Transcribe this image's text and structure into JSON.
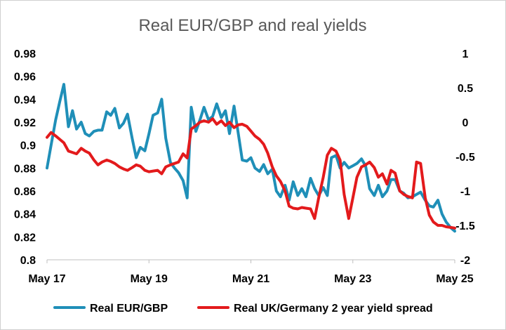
{
  "chart_data": {
    "type": "line",
    "title": "Real EUR/GBP and real yields",
    "xlabel": "",
    "ylabel": "",
    "x_ticks": [
      "May 17",
      "May 19",
      "May 21",
      "May 23",
      "May 25"
    ],
    "x_tick_positions": [
      2017.37,
      2019.37,
      2021.37,
      2023.37,
      2025.37
    ],
    "xlim": [
      2017.37,
      2025.37
    ],
    "left_axis": {
      "ylim": [
        0.8,
        0.98
      ],
      "ticks": [
        "0.8",
        "0.82",
        "0.84",
        "0.86",
        "0.88",
        "0.9",
        "0.92",
        "0.94",
        "0.96",
        "0.98"
      ]
    },
    "right_axis": {
      "ylim": [
        -2,
        1
      ],
      "ticks": [
        "1",
        "0.5",
        "0",
        "-0.5",
        "-1",
        "-1.5",
        "-2"
      ]
    },
    "grid": false,
    "legend": "bottom",
    "series": [
      {
        "name": "Real EUR/GBP",
        "axis": "left",
        "color": "#1f8fb8",
        "x": [
          2017.37,
          2017.45,
          2017.54,
          2017.62,
          2017.7,
          2017.79,
          2017.87,
          2017.95,
          2018.04,
          2018.12,
          2018.2,
          2018.29,
          2018.37,
          2018.45,
          2018.54,
          2018.62,
          2018.7,
          2018.79,
          2018.87,
          2018.95,
          2019.04,
          2019.12,
          2019.2,
          2019.29,
          2019.37,
          2019.45,
          2019.54,
          2019.62,
          2019.7,
          2019.79,
          2019.87,
          2019.95,
          2020.04,
          2020.12,
          2020.2,
          2020.29,
          2020.37,
          2020.45,
          2020.54,
          2020.62,
          2020.7,
          2020.79,
          2020.87,
          2020.95,
          2021.04,
          2021.12,
          2021.2,
          2021.29,
          2021.37,
          2021.45,
          2021.54,
          2021.62,
          2021.7,
          2021.79,
          2021.87,
          2021.95,
          2022.04,
          2022.12,
          2022.2,
          2022.29,
          2022.37,
          2022.45,
          2022.54,
          2022.62,
          2022.7,
          2022.79,
          2022.87,
          2022.95,
          2023.04,
          2023.12,
          2023.2,
          2023.29,
          2023.37,
          2023.45,
          2023.54,
          2023.62,
          2023.7,
          2023.79,
          2023.87,
          2023.95,
          2024.04,
          2024.12,
          2024.2,
          2024.29,
          2024.37,
          2024.45,
          2024.54,
          2024.62,
          2024.7,
          2024.79,
          2024.87,
          2024.95,
          2025.04,
          2025.12,
          2025.2,
          2025.29,
          2025.37
        ],
        "y": [
          0.88,
          0.9,
          0.922,
          0.938,
          0.953,
          0.916,
          0.93,
          0.914,
          0.92,
          0.91,
          0.908,
          0.912,
          0.913,
          0.913,
          0.929,
          0.926,
          0.932,
          0.915,
          0.919,
          0.927,
          0.906,
          0.889,
          0.898,
          0.895,
          0.91,
          0.926,
          0.928,
          0.94,
          0.906,
          0.885,
          0.88,
          0.876,
          0.869,
          0.854,
          0.933,
          0.912,
          0.922,
          0.933,
          0.922,
          0.925,
          0.936,
          0.924,
          0.93,
          0.91,
          0.934,
          0.911,
          0.887,
          0.886,
          0.889,
          0.88,
          0.877,
          0.883,
          0.875,
          0.879,
          0.86,
          0.855,
          0.865,
          0.852,
          0.868,
          0.856,
          0.862,
          0.855,
          0.871,
          0.862,
          0.856,
          0.863,
          0.856,
          0.889,
          0.891,
          0.88,
          0.885,
          0.88,
          0.882,
          0.884,
          0.888,
          0.882,
          0.862,
          0.856,
          0.865,
          0.855,
          0.86,
          0.87,
          0.87,
          0.86,
          0.858,
          0.854,
          0.855,
          0.857,
          0.859,
          0.852,
          0.847,
          0.846,
          0.852,
          0.84,
          0.833,
          0.828,
          0.825
        ]
      },
      {
        "name": "Real UK/Germany 2 year yield spread",
        "axis": "right",
        "color": "#e31a1c",
        "x": [
          2017.37,
          2017.45,
          2017.54,
          2017.62,
          2017.7,
          2017.79,
          2017.87,
          2017.95,
          2018.04,
          2018.12,
          2018.2,
          2018.29,
          2018.37,
          2018.45,
          2018.54,
          2018.62,
          2018.7,
          2018.79,
          2018.87,
          2018.95,
          2019.04,
          2019.12,
          2019.2,
          2019.29,
          2019.37,
          2019.45,
          2019.54,
          2019.62,
          2019.7,
          2019.79,
          2019.87,
          2019.95,
          2020.04,
          2020.12,
          2020.2,
          2020.29,
          2020.37,
          2020.45,
          2020.54,
          2020.62,
          2020.7,
          2020.79,
          2020.87,
          2020.95,
          2021.04,
          2021.12,
          2021.2,
          2021.29,
          2021.37,
          2021.45,
          2021.54,
          2021.62,
          2021.7,
          2021.79,
          2021.87,
          2021.95,
          2022.04,
          2022.12,
          2022.2,
          2022.29,
          2022.37,
          2022.45,
          2022.54,
          2022.62,
          2022.7,
          2022.79,
          2022.87,
          2022.95,
          2023.04,
          2023.12,
          2023.2,
          2023.29,
          2023.37,
          2023.45,
          2023.54,
          2023.62,
          2023.7,
          2023.79,
          2023.87,
          2023.95,
          2024.04,
          2024.12,
          2024.2,
          2024.29,
          2024.37,
          2024.45,
          2024.54,
          2024.62,
          2024.7,
          2024.79,
          2024.87,
          2024.95,
          2025.04,
          2025.12,
          2025.2,
          2025.29,
          2025.37
        ],
        "y": [
          -0.22,
          -0.15,
          -0.2,
          -0.25,
          -0.3,
          -0.42,
          -0.44,
          -0.46,
          -0.38,
          -0.42,
          -0.45,
          -0.55,
          -0.62,
          -0.58,
          -0.55,
          -0.57,
          -0.6,
          -0.65,
          -0.68,
          -0.7,
          -0.66,
          -0.62,
          -0.64,
          -0.7,
          -0.72,
          -0.71,
          -0.7,
          -0.75,
          -0.65,
          -0.62,
          -0.6,
          -0.58,
          -0.46,
          -0.52,
          -0.1,
          -0.05,
          0.0,
          0.02,
          0.0,
          0.05,
          -0.03,
          0.02,
          -0.05,
          0.0,
          -0.08,
          -0.04,
          -0.03,
          -0.06,
          -0.13,
          -0.2,
          -0.25,
          -0.32,
          -0.45,
          -0.65,
          -0.78,
          -0.86,
          -1.0,
          -1.22,
          -1.25,
          -1.26,
          -1.24,
          -1.25,
          -1.26,
          -1.4,
          -1.1,
          -0.8,
          -0.48,
          -0.38,
          -0.42,
          -0.55,
          -1.05,
          -1.4,
          -1.1,
          -0.8,
          -0.65,
          -0.62,
          -0.58,
          -0.66,
          -0.8,
          -0.75,
          -0.9,
          -0.7,
          -0.74,
          -1.0,
          -1.05,
          -1.08,
          -1.1,
          -0.58,
          -0.6,
          -1.1,
          -1.35,
          -1.45,
          -1.5,
          -1.5,
          -1.52,
          -1.53,
          -1.54
        ]
      }
    ]
  }
}
